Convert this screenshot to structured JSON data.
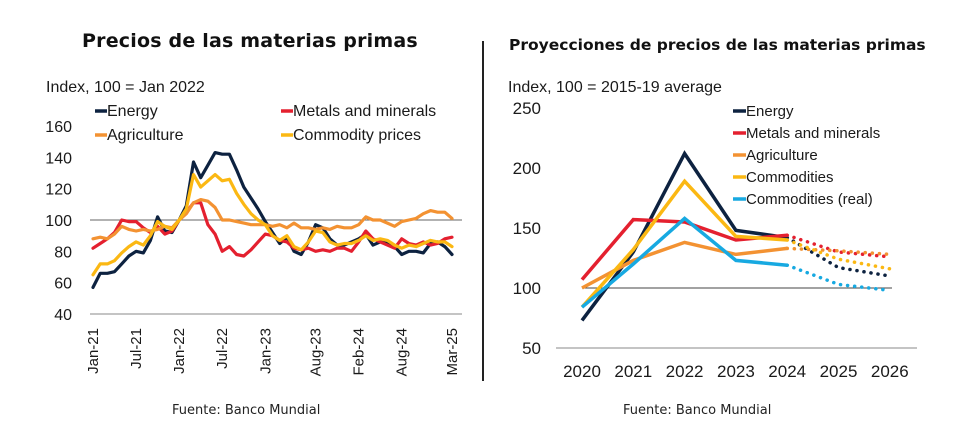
{
  "titles": {
    "left": "Precios de las materias primas",
    "right": "Proyecciones de precios de las materias primas"
  },
  "sources": {
    "left": "Fuente: Banco Mundial",
    "right": "Fuente: Banco Mundial"
  },
  "colors": {
    "energy": "#0d2240",
    "metals": "#e4202f",
    "agriculture": "#f39232",
    "commodities": "#fbb813",
    "commodities_real": "#17a9e1"
  },
  "chart_data": [
    {
      "type": "line",
      "title": "Precios de las materias primas",
      "subtitle": "Index, 100 = Jan 2022",
      "xlabel": "",
      "ylabel": "Index, 100 = Jan 2022",
      "ylim": [
        40,
        160
      ],
      "yticks": [
        40,
        60,
        80,
        100,
        120,
        140,
        160
      ],
      "reference_line": 100,
      "x_tick_labels": [
        "Jan-21",
        "Jul-21",
        "Jan-22",
        "Jul-22",
        "Jan-23",
        "Aug-23",
        "Feb-24",
        "Aug-24",
        "Mar-25"
      ],
      "x_tick_months": [
        0,
        6,
        12,
        18,
        24,
        31,
        37,
        43,
        50
      ],
      "x_months_start": "Jan-21",
      "legend": [
        "Energy",
        "Metals and minerals",
        "Agriculture",
        "Commodity prices"
      ],
      "legend_placement": "top",
      "series": [
        {
          "name": "Energy",
          "color_key": "energy",
          "values": [
            57,
            66,
            66,
            67,
            72,
            77,
            80,
            79,
            87,
            102,
            93,
            92,
            100,
            109,
            137,
            127,
            135,
            143,
            142,
            142,
            132,
            121,
            114,
            107,
            99,
            92,
            85,
            89,
            80,
            78,
            86,
            97,
            95,
            88,
            84,
            84,
            86,
            88,
            91,
            84,
            86,
            86,
            83,
            78,
            80,
            80,
            79,
            85,
            86,
            83,
            78
          ]
        },
        {
          "name": "Metals and minerals",
          "color_key": "metals",
          "values": [
            82,
            85,
            88,
            92,
            100,
            99,
            99,
            95,
            92,
            96,
            91,
            93,
            100,
            105,
            111,
            111,
            97,
            91,
            80,
            83,
            78,
            77,
            81,
            86,
            91,
            90,
            87,
            86,
            82,
            81,
            82,
            80,
            81,
            80,
            82,
            82,
            80,
            86,
            93,
            88,
            86,
            84,
            82,
            88,
            85,
            84,
            86,
            84,
            85,
            88,
            89
          ]
        },
        {
          "name": "Agriculture",
          "color_key": "agriculture",
          "values": [
            88,
            89,
            88,
            91,
            96,
            94,
            93,
            94,
            93,
            94,
            96,
            95,
            100,
            104,
            111,
            113,
            112,
            108,
            100,
            100,
            99,
            98,
            97,
            97,
            97,
            96,
            97,
            95,
            98,
            95,
            95,
            94,
            95,
            94,
            96,
            95,
            95,
            97,
            102,
            100,
            100,
            98,
            96,
            99,
            100,
            101,
            104,
            106,
            105,
            105,
            101
          ]
        },
        {
          "name": "Commodity prices",
          "color_key": "commodities",
          "values": [
            65,
            72,
            72,
            74,
            79,
            83,
            86,
            84,
            90,
            99,
            96,
            94,
            100,
            107,
            129,
            121,
            125,
            129,
            125,
            126,
            117,
            110,
            104,
            100,
            97,
            90,
            87,
            90,
            83,
            81,
            86,
            93,
            92,
            86,
            84,
            85,
            85,
            87,
            90,
            87,
            88,
            87,
            84,
            82,
            84,
            83,
            85,
            87,
            86,
            86,
            83
          ]
        }
      ]
    },
    {
      "type": "line",
      "title": "Proyecciones de precios de las materias primas",
      "subtitle": "Index, 100 = 2015-19 average",
      "xlabel": "",
      "ylabel": "Index, 100 = 2015-19 average",
      "ylim": [
        50,
        250
      ],
      "yticks": [
        50,
        100,
        150,
        200,
        250
      ],
      "reference_line": 100,
      "categories": [
        "2020",
        "2021",
        "2022",
        "2023",
        "2024",
        "2025",
        "2026"
      ],
      "projection_start_index": 4,
      "projection_style": "dotted",
      "legend": [
        "Energy",
        "Metals and minerals",
        "Agriculture",
        "Commodities",
        "Commodities (real)"
      ],
      "legend_placement": "top-right",
      "series": [
        {
          "name": "Energy",
          "color_key": "energy",
          "values": [
            73,
            130,
            212,
            148,
            142,
            117,
            110
          ]
        },
        {
          "name": "Metals and minerals",
          "color_key": "metals",
          "values": [
            107,
            157,
            155,
            140,
            144,
            130,
            126
          ]
        },
        {
          "name": "Agriculture",
          "color_key": "agriculture",
          "values": [
            100,
            123,
            138,
            128,
            133,
            131,
            128
          ]
        },
        {
          "name": "Commodities",
          "color_key": "commodities",
          "values": [
            84,
            132,
            189,
            143,
            140,
            124,
            116
          ]
        },
        {
          "name": "Commodities (real)",
          "color_key": "commodities_real",
          "values": [
            84,
            120,
            158,
            123,
            119,
            103,
            98
          ]
        }
      ]
    }
  ]
}
